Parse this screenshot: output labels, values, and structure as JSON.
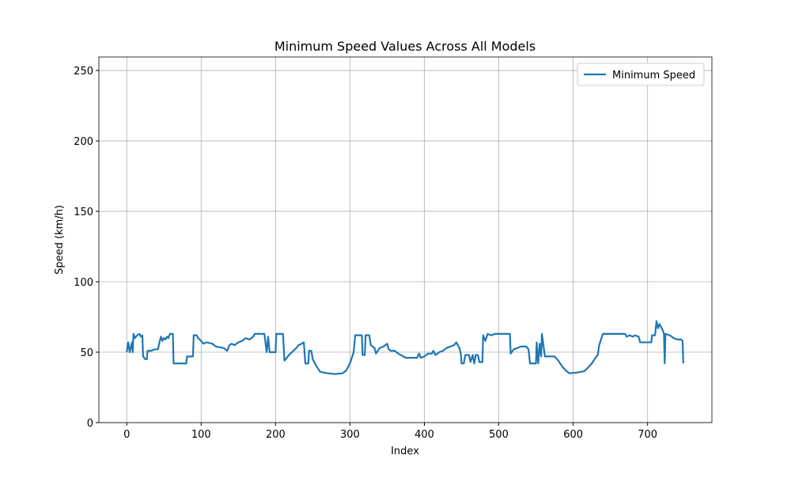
{
  "chart_data": {
    "type": "line",
    "title": "Minimum Speed Values Across All Models",
    "x_label": "Index",
    "y_label": "Speed (km/h)",
    "x": [
      0,
      2,
      4,
      7,
      8,
      9,
      11,
      14,
      17,
      19,
      21,
      22,
      25,
      27,
      28,
      33,
      37,
      42,
      44,
      46,
      48,
      50,
      52,
      54,
      56,
      58,
      62,
      63,
      80,
      81,
      89,
      90,
      94,
      96,
      100,
      103,
      107,
      115,
      120,
      130,
      135,
      138,
      141,
      145,
      150,
      155,
      160,
      165,
      170,
      172,
      185,
      188,
      190,
      192,
      200,
      201,
      210,
      212,
      218,
      222,
      228,
      231,
      235,
      238,
      240,
      244,
      245,
      248,
      250,
      255,
      260,
      270,
      280,
      290,
      295,
      300,
      305,
      307,
      316,
      317,
      320,
      321,
      326,
      328,
      333,
      335,
      340,
      345,
      350,
      352,
      355,
      360,
      365,
      375,
      385,
      390,
      393,
      395,
      400,
      405,
      410,
      412,
      415,
      420,
      425,
      430,
      440,
      443,
      447,
      449,
      450,
      453,
      455,
      460,
      462,
      465,
      467,
      469,
      472,
      474,
      478,
      479,
      482,
      485,
      490,
      495,
      515,
      516,
      520,
      525,
      530,
      537,
      540,
      542,
      550,
      551,
      553,
      555,
      557,
      558,
      560,
      562,
      575,
      580,
      585,
      590,
      595,
      605,
      610,
      615,
      620,
      625,
      630,
      633,
      635,
      638,
      640,
      670,
      672,
      676,
      680,
      683,
      688,
      690,
      705,
      706,
      710,
      712,
      714,
      716,
      718,
      720,
      722,
      723,
      724,
      730,
      735,
      740,
      745,
      747,
      748
    ],
    "series": [
      {
        "name": "Minimum Speed",
        "color": "#1f77b4",
        "values": [
          50,
          57,
          50,
          57,
          50,
          63,
          60,
          62,
          63,
          61,
          62,
          47,
          45,
          45,
          51,
          51,
          52,
          52,
          57,
          61,
          58,
          60,
          59,
          61,
          60,
          63,
          63,
          42,
          42,
          47,
          47,
          62,
          62,
          60,
          58,
          56,
          57,
          56,
          54,
          53,
          51,
          55,
          56,
          55,
          57,
          58,
          60,
          59,
          61,
          63,
          63,
          50,
          61,
          50,
          50,
          63,
          63,
          44,
          48,
          50,
          53,
          55,
          56,
          57,
          42,
          42,
          51,
          51,
          45,
          40,
          36,
          35,
          34.5,
          35,
          37,
          42,
          50,
          62,
          62,
          48,
          48,
          62,
          62,
          55,
          53,
          49,
          53,
          54,
          56,
          52,
          51,
          51,
          49,
          46,
          46,
          46,
          49,
          46,
          47,
          49,
          49,
          51,
          48,
          50,
          51,
          53,
          55,
          57,
          53,
          49,
          42,
          42,
          48,
          48,
          43,
          48,
          42,
          48,
          48,
          43,
          43,
          62,
          58,
          63,
          62,
          63,
          63,
          49,
          52,
          53,
          54,
          54,
          52,
          42,
          42,
          57,
          42,
          56,
          47,
          63,
          55,
          47,
          47,
          44,
          40,
          37,
          35,
          35.5,
          36,
          36.5,
          39,
          42,
          46,
          48,
          55,
          60,
          63,
          63,
          61,
          62,
          61,
          62,
          61,
          57,
          57,
          62,
          62,
          72,
          67,
          70,
          68,
          66,
          63,
          42,
          63,
          62,
          60,
          59,
          59,
          58,
          42
        ]
      }
    ],
    "xlim": [
      -37.45,
      786.45
    ],
    "ylim": [
      0,
      259.6
    ],
    "xticks": [
      0,
      100,
      200,
      300,
      400,
      500,
      600,
      700
    ],
    "yticks": [
      0,
      50,
      100,
      150,
      200,
      250
    ],
    "grid": true,
    "legend": "upper right"
  }
}
